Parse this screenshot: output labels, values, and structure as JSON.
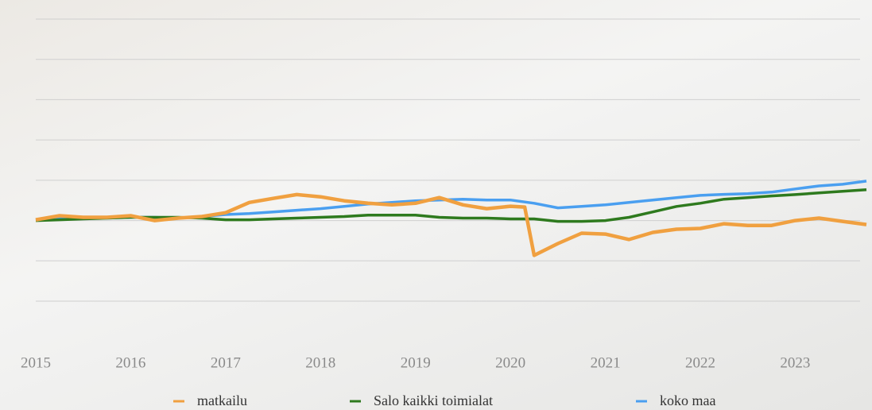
{
  "chart_data": {
    "type": "line",
    "xlim": [
      2015,
      2023.75
    ],
    "xticks": [
      2015,
      2016,
      2017,
      2018,
      2019,
      2020,
      2021,
      2022,
      2023
    ],
    "ylim": [
      60,
      200
    ],
    "yticks": [
      60,
      80,
      100,
      120,
      140,
      160,
      180,
      200
    ],
    "ytick_labels": false,
    "grid": true,
    "legend": "bottom",
    "series": [
      {
        "name": "matkailu",
        "color": "#f0a040",
        "x": [
          2015,
          2015.25,
          2015.5,
          2015.75,
          2016,
          2016.25,
          2016.5,
          2016.75,
          2017,
          2017.25,
          2017.5,
          2017.75,
          2018,
          2018.25,
          2018.5,
          2018.75,
          2019,
          2019.25,
          2019.5,
          2019.75,
          2020,
          2020.15,
          2020.25,
          2020.5,
          2020.75,
          2021,
          2021.25,
          2021.5,
          2021.75,
          2022,
          2022.25,
          2022.5,
          2022.75,
          2023,
          2023.25,
          2023.5,
          2023.75
        ],
        "values": [
          100.4,
          102.4,
          101.6,
          101.6,
          102.4,
          100,
          101.2,
          102,
          103.9,
          109,
          111,
          112.9,
          111.8,
          109.8,
          108.6,
          107.8,
          108.6,
          111.4,
          107.8,
          105.9,
          107.1,
          106.7,
          82.7,
          88.6,
          93.7,
          93.3,
          90.6,
          94.1,
          95.7,
          96.1,
          98.4,
          97.6,
          97.6,
          100,
          101.2,
          99.6,
          98
        ]
      },
      {
        "name": "Salo kaikki toimialat",
        "color": "#2e7a1e",
        "x": [
          2015,
          2015.25,
          2015.5,
          2015.75,
          2016,
          2016.25,
          2016.5,
          2016.75,
          2017,
          2017.25,
          2017.5,
          2017.75,
          2018,
          2018.25,
          2018.5,
          2018.75,
          2019,
          2019.25,
          2019.5,
          2019.75,
          2020,
          2020.25,
          2020.5,
          2020.75,
          2021,
          2021.25,
          2021.5,
          2021.75,
          2022,
          2022.25,
          2022.5,
          2022.75,
          2023,
          2023.25,
          2023.5,
          2023.75
        ],
        "values": [
          100,
          100.4,
          100.8,
          101.2,
          101.6,
          101.6,
          101.6,
          101.2,
          100.4,
          100.4,
          100.8,
          101.2,
          101.6,
          102,
          102.7,
          102.7,
          102.7,
          101.6,
          101.2,
          101.2,
          100.8,
          100.8,
          99.6,
          99.6,
          100,
          101.6,
          104.3,
          107,
          108.6,
          110.6,
          111.4,
          112.2,
          112.9,
          113.7,
          114.5,
          115.3
        ]
      },
      {
        "name": "koko maa",
        "color": "#4a9ff0",
        "x": [
          2015,
          2015.25,
          2015.5,
          2015.75,
          2016,
          2016.25,
          2016.5,
          2016.75,
          2017,
          2017.25,
          2017.5,
          2017.75,
          2018,
          2018.25,
          2018.5,
          2018.75,
          2019,
          2019.25,
          2019.5,
          2019.75,
          2020,
          2020.25,
          2020.5,
          2020.75,
          2021,
          2021.25,
          2021.5,
          2021.75,
          2022,
          2022.25,
          2022.5,
          2022.75,
          2023,
          2023.25,
          2023.5,
          2023.75
        ],
        "values": [
          100.4,
          101.6,
          101.6,
          101.2,
          101.6,
          101.6,
          101.2,
          102,
          103,
          103.5,
          104.3,
          105.1,
          105.9,
          107,
          108.2,
          109,
          109.8,
          110.2,
          110.6,
          110.2,
          110.2,
          108.6,
          106.3,
          107,
          107.8,
          109,
          110.2,
          111.4,
          112.5,
          113,
          113.3,
          114.1,
          115.7,
          117.2,
          118,
          119.6
        ]
      }
    ]
  }
}
